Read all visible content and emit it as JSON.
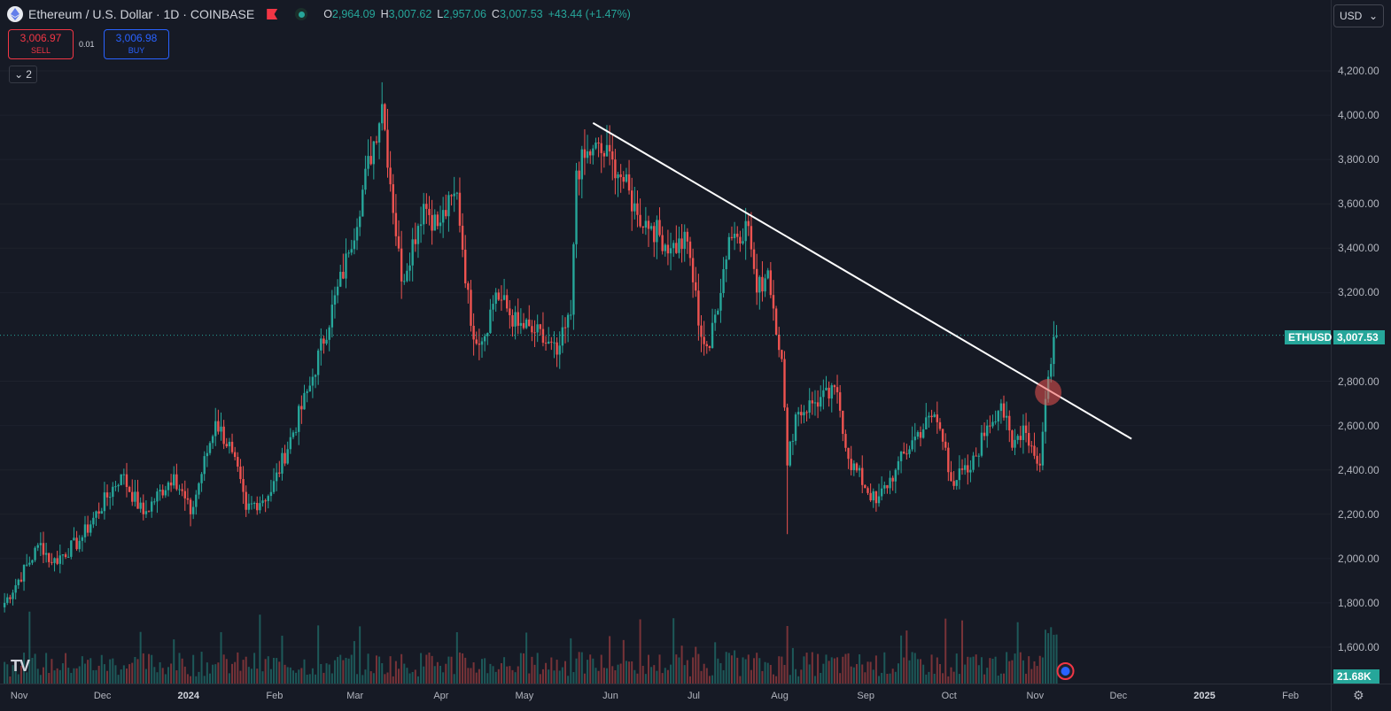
{
  "header": {
    "title": "Ethereum / U.S. Dollar · 1D · COINBASE",
    "ohlc": {
      "o_label": "O",
      "o": "2,964.09",
      "h_label": "H",
      "h": "3,007.62",
      "l_label": "L",
      "l": "2,957.06",
      "c_label": "C",
      "c": "3,007.53",
      "change": "+43.44 (+1.47%)"
    }
  },
  "trade": {
    "sell_price": "3,006.97",
    "sell_label": "SELL",
    "spread": "0.01",
    "buy_price": "3,006.98",
    "buy_label": "BUY"
  },
  "indicators_count": "2",
  "currency": "USD",
  "price_axis": {
    "ticks": [
      "4,200.00",
      "4,000.00",
      "3,800.00",
      "3,600.00",
      "3,400.00",
      "3,200.00",
      "2,800.00",
      "2,600.00",
      "2,400.00",
      "2,200.00",
      "2,000.00",
      "1,800.00",
      "1,600.00"
    ],
    "symbol_tag": "ETHUSD",
    "last_price": "3,007.53",
    "volume_tag": "21.68K"
  },
  "time_axis": {
    "labels": [
      "Nov",
      "Dec",
      "2024",
      "Feb",
      "Mar",
      "Apr",
      "May",
      "Jun",
      "Jul",
      "Aug",
      "Sep",
      "Oct",
      "Nov",
      "Dec",
      "2025",
      "Feb"
    ]
  },
  "colors": {
    "up": "#26a69a",
    "down": "#ef5350",
    "background": "#161a25",
    "trendline": "#ffffff",
    "buy": "#2962ff",
    "sell": "#f23645"
  },
  "icons": [
    "ethereum-logo-icon",
    "flag-icon",
    "market-status-icon",
    "chevron-down-icon",
    "tradingview-logo-icon",
    "settings-icon",
    "news-icon"
  ],
  "chart_data": {
    "type": "candlestick",
    "x_start": "2023-10-27",
    "interval": "1D",
    "y_range": [
      1520,
      4330
    ],
    "anchors": [
      [
        "2023-10-27",
        1780
      ],
      [
        "2023-11-10",
        2070
      ],
      [
        "2023-11-14",
        1980
      ],
      [
        "2023-11-24",
        2080
      ],
      [
        "2023-12-09",
        2380
      ],
      [
        "2023-12-17",
        2200
      ],
      [
        "2023-12-28",
        2380
      ],
      [
        "2024-01-03",
        2200
      ],
      [
        "2024-01-12",
        2620
      ],
      [
        "2024-01-18",
        2480
      ],
      [
        "2024-01-23",
        2220
      ],
      [
        "2024-02-01",
        2300
      ],
      [
        "2024-02-15",
        2780
      ],
      [
        "2024-02-29",
        3380
      ],
      [
        "2024-03-12",
        4050
      ],
      [
        "2024-03-19",
        3250
      ],
      [
        "2024-03-27",
        3600
      ],
      [
        "2024-04-01",
        3500
      ],
      [
        "2024-04-08",
        3650
      ],
      [
        "2024-04-13",
        3050
      ],
      [
        "2024-04-17",
        2980
      ],
      [
        "2024-04-22",
        3200
      ],
      [
        "2024-04-30",
        3050
      ],
      [
        "2024-05-06",
        3020
      ],
      [
        "2024-05-14",
        2920
      ],
      [
        "2024-05-19",
        3100
      ],
      [
        "2024-05-21",
        3750
      ],
      [
        "2024-05-27",
        3850
      ],
      [
        "2024-06-03",
        3800
      ],
      [
        "2024-06-07",
        3700
      ],
      [
        "2024-06-12",
        3550
      ],
      [
        "2024-06-17",
        3500
      ],
      [
        "2024-06-24",
        3400
      ],
      [
        "2024-06-30",
        3430
      ],
      [
        "2024-07-05",
        3000
      ],
      [
        "2024-07-08",
        2950
      ],
      [
        "2024-07-15",
        3450
      ],
      [
        "2024-07-22",
        3500
      ],
      [
        "2024-07-25",
        3200
      ],
      [
        "2024-07-29",
        3300
      ],
      [
        "2024-08-03",
        2900
      ],
      [
        "2024-08-05",
        2420
      ],
      [
        "2024-08-08",
        2650
      ],
      [
        "2024-08-14",
        2700
      ],
      [
        "2024-08-23",
        2750
      ],
      [
        "2024-08-27",
        2450
      ],
      [
        "2024-09-06",
        2250
      ],
      [
        "2024-09-13",
        2400
      ],
      [
        "2024-09-20",
        2550
      ],
      [
        "2024-09-27",
        2650
      ],
      [
        "2024-10-01",
        2500
      ],
      [
        "2024-10-03",
        2350
      ],
      [
        "2024-10-10",
        2400
      ],
      [
        "2024-10-16",
        2600
      ],
      [
        "2024-10-21",
        2700
      ],
      [
        "2024-10-25",
        2500
      ],
      [
        "2024-10-29",
        2600
      ],
      [
        "2024-11-04",
        2420
      ],
      [
        "2024-11-06",
        2720
      ],
      [
        "2024-11-09",
        3000
      ],
      [
        "2024-11-10",
        3007.53
      ]
    ],
    "trendline": [
      [
        "2024-05-27",
        3965
      ],
      [
        "2024-12-07",
        2540
      ]
    ],
    "highlight": [
      "2024-11-07",
      2750
    ],
    "last_price": 3007.53
  }
}
